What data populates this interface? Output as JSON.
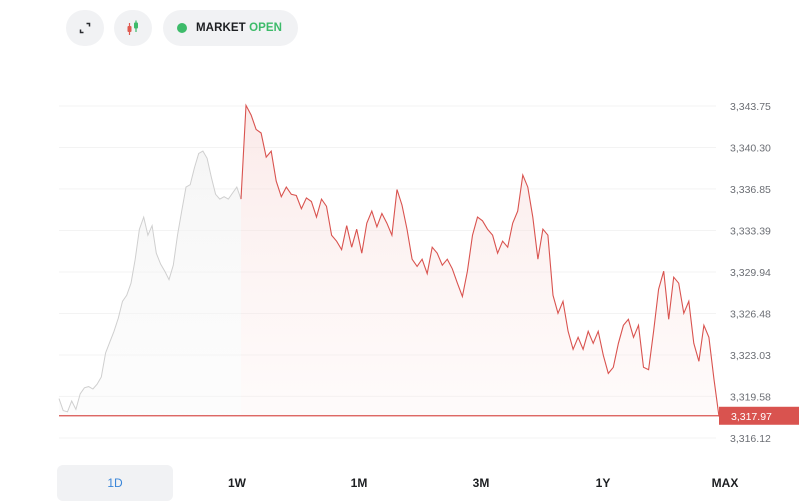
{
  "toolbar": {
    "expand_icon": "expand-corners-icon",
    "candles_icon": "candlestick-icon",
    "status_label": "MARKET",
    "status_value": "OPEN",
    "status_color": "#3dbb6a"
  },
  "chart_data": {
    "type": "line",
    "y_ticks": [
      "3,343.75",
      "3,340.30",
      "3,336.85",
      "3,333.39",
      "3,329.94",
      "3,326.48",
      "3,323.03",
      "3,319.58",
      "3,316.12"
    ],
    "y_range": [
      3316.12,
      3343.75
    ],
    "current_price": 3317.97,
    "current_price_label": "3,317.97",
    "line_color": "#d9534f",
    "previous_color": "#cfcfcf",
    "series": [
      {
        "segment": "previous",
        "values": [
          3319.4,
          3318.4,
          3318.3,
          3319.2,
          3318.5,
          3319.8,
          3320.3,
          3320.4,
          3320.2,
          3320.6,
          3321.2,
          3323.2,
          3324.1,
          3325.0,
          3326.1,
          3327.5,
          3328.0,
          3329.0,
          3331.0,
          3333.5,
          3334.5,
          3333.0,
          3333.8,
          3331.5,
          3330.6,
          3330.0,
          3329.3,
          3330.5,
          3333.0,
          3335.0,
          3337.0,
          3337.2,
          3338.6,
          3339.8,
          3340.0,
          3339.4,
          3337.8,
          3336.4,
          3336.0,
          3336.2,
          3336.0,
          3336.5,
          3337.0,
          3336.0
        ]
      },
      {
        "segment": "today",
        "values": [
          3336.0,
          3343.8,
          3343.0,
          3341.8,
          3341.5,
          3339.5,
          3340.0,
          3337.5,
          3336.2,
          3337.0,
          3336.4,
          3336.3,
          3335.2,
          3336.1,
          3335.8,
          3334.5,
          3336.0,
          3335.4,
          3333.0,
          3332.5,
          3331.8,
          3333.8,
          3332.0,
          3333.5,
          3331.5,
          3334.0,
          3335.0,
          3333.7,
          3334.8,
          3334.0,
          3333.0,
          3336.8,
          3335.5,
          3333.5,
          3331.0,
          3330.4,
          3331.0,
          3329.8,
          3332.0,
          3331.5,
          3330.5,
          3331.0,
          3330.2,
          3329.0,
          3327.9,
          3330.0,
          3333.0,
          3334.5,
          3334.2,
          3333.5,
          3333.0,
          3331.5,
          3332.5,
          3332.0,
          3334.0,
          3335.0,
          3338.0,
          3337.0,
          3334.5,
          3331.0,
          3333.5,
          3333.0,
          3328.0,
          3326.5,
          3327.5,
          3325.0,
          3323.5,
          3324.5,
          3323.5,
          3325.0,
          3324.0,
          3325.0,
          3323.0,
          3321.5,
          3322.0,
          3324.0,
          3325.5,
          3326.0,
          3324.5,
          3325.5,
          3322.0,
          3321.8,
          3325.0,
          3328.5,
          3330.0,
          3326.0,
          3329.5,
          3329.0,
          3326.5,
          3327.5,
          3324.0,
          3322.5,
          3325.5,
          3324.5,
          3321.0,
          3317.9
        ]
      }
    ]
  },
  "tabs": [
    {
      "label": "1D",
      "active": true
    },
    {
      "label": "1W",
      "active": false
    },
    {
      "label": "1M",
      "active": false
    },
    {
      "label": "3M",
      "active": false
    },
    {
      "label": "1Y",
      "active": false
    },
    {
      "label": "MAX",
      "active": false
    }
  ]
}
